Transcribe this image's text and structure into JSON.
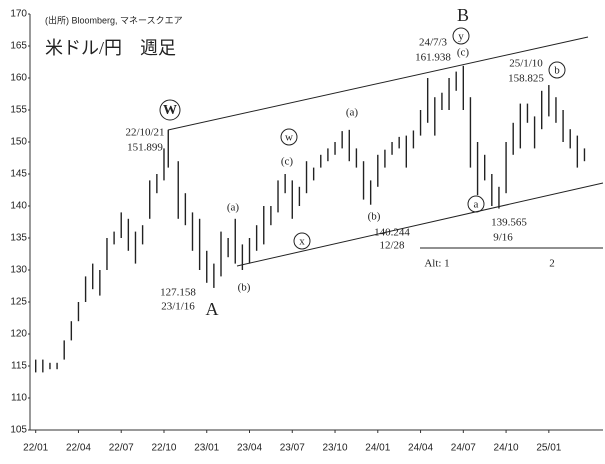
{
  "chart_data": {
    "type": "range",
    "source": "(出所) Bloomberg, マネースクエア",
    "title": "米ドル/円　週足",
    "color": "#222222",
    "xlim": [
      -0.4,
      39.8
    ],
    "xticks": [
      {
        "value": 0,
        "label": "22/01"
      },
      {
        "value": 3,
        "label": "22/04"
      },
      {
        "value": 6,
        "label": "22/07"
      },
      {
        "value": 9,
        "label": "22/10"
      },
      {
        "value": 12,
        "label": "23/01"
      },
      {
        "value": 15,
        "label": "23/04"
      },
      {
        "value": 18,
        "label": "23/07"
      },
      {
        "value": 21,
        "label": "23/10"
      },
      {
        "value": 24,
        "label": "24/01"
      },
      {
        "value": 27,
        "label": "24/04"
      },
      {
        "value": 30,
        "label": "24/07"
      },
      {
        "value": 33,
        "label": "24/10"
      },
      {
        "value": 36,
        "label": "25/01"
      }
    ],
    "ylim": [
      105,
      170
    ],
    "yticks": [
      105,
      110,
      115,
      120,
      125,
      130,
      135,
      140,
      145,
      150,
      155,
      160,
      165,
      170
    ],
    "x": [
      0,
      0.5,
      1,
      1.5,
      2,
      2.5,
      3,
      3.5,
      4,
      4.5,
      5,
      5.5,
      6,
      6.5,
      7,
      7.5,
      8,
      8.5,
      9,
      9.3,
      10,
      10.5,
      11,
      11.5,
      12,
      12.5,
      13,
      13.5,
      14,
      14.5,
      15,
      15.5,
      16,
      16.5,
      17,
      17.5,
      18,
      18.5,
      19,
      19.5,
      20,
      20.5,
      21,
      21.5,
      22,
      22.5,
      23,
      23.5,
      24,
      24.5,
      25,
      25.5,
      26,
      26.5,
      27,
      27.5,
      28,
      28.5,
      29,
      29.5,
      30,
      30.5,
      31,
      31.5,
      32,
      32.5,
      33,
      33.5,
      34,
      34.5,
      35,
      35.5,
      36,
      36.5,
      37,
      37.5,
      38,
      38.5
    ],
    "high": [
      116,
      116,
      115.5,
      115.5,
      119,
      122,
      125,
      129,
      131,
      130,
      135,
      136,
      139,
      138,
      136,
      137,
      144,
      145,
      149,
      151.9,
      147,
      142,
      139,
      138,
      133,
      131,
      136,
      135,
      138,
      134,
      135,
      137,
      140,
      140,
      144,
      145,
      144,
      143,
      147,
      146,
      148,
      149,
      150,
      151.7,
      151.9,
      149,
      147,
      144,
      148,
      148.8,
      150,
      150.8,
      151,
      151.8,
      155,
      160,
      157,
      157.7,
      160,
      161,
      161.9,
      157,
      150,
      148,
      145,
      143,
      150,
      153,
      156,
      156,
      154,
      158,
      158.9,
      157,
      155,
      152,
      151,
      149
    ],
    "low": [
      114,
      114,
      114.5,
      114.5,
      116,
      119,
      122,
      125,
      127,
      126,
      130,
      134,
      135,
      133,
      131,
      134,
      138,
      142,
      144,
      146,
      138,
      137,
      133,
      130,
      128,
      127.2,
      129,
      132,
      131,
      130,
      131,
      133,
      134,
      137,
      139,
      142,
      138,
      140,
      142,
      144,
      146,
      147,
      148,
      149,
      147,
      146,
      141,
      140.2,
      143,
      146,
      148,
      149,
      146,
      149,
      151,
      153,
      151,
      155,
      155,
      158,
      155,
      146,
      141.7,
      144,
      140,
      139.6,
      142,
      148,
      149,
      153,
      149,
      152,
      154,
      153,
      150,
      149,
      146,
      147
    ],
    "annotations": [
      "W",
      "22/10/21",
      "151.899",
      "(a)",
      "(b)",
      "127.158",
      "23/1/16",
      "A",
      "w",
      "(c)",
      "x",
      "(a)",
      "(b)",
      "140.244",
      "12/28",
      "B",
      "y",
      "24/7/3",
      "161.938",
      "(c)",
      "a",
      "139.565",
      "9/16",
      "25/1/10",
      "158.825",
      "b",
      "Alt: 1",
      "2"
    ]
  }
}
